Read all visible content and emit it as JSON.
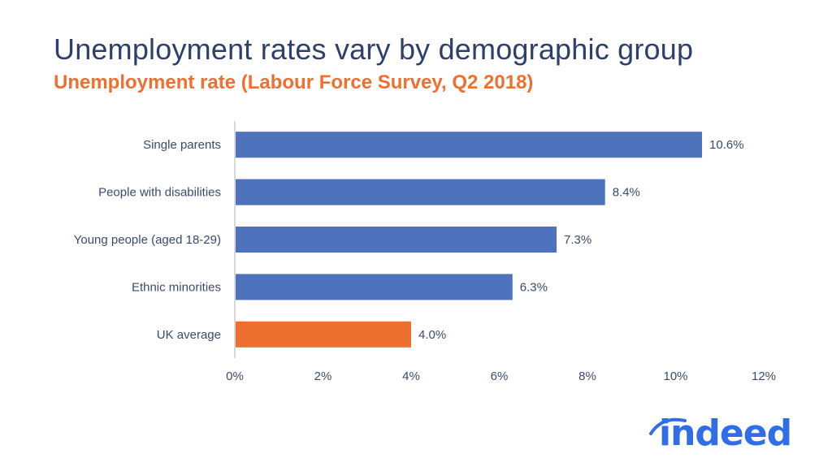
{
  "header": {
    "title": "Unemployment rates vary by demographic group",
    "subtitle": "Unemployment rate (Labour Force Survey, Q2 2018)"
  },
  "colors": {
    "default_bar": "#4f72bd",
    "highlight_bar": "#ed7030",
    "text": "#3b4a6b",
    "axis": "#d9d9d9",
    "logo": "#2f6ee6"
  },
  "logo": {
    "text": "indeed"
  },
  "chart_data": {
    "type": "bar",
    "orientation": "horizontal",
    "title": "Unemployment rates vary by demographic group",
    "subtitle": "Unemployment rate (Labour Force Survey, Q2 2018)",
    "xlabel": "",
    "ylabel": "",
    "categories": [
      "Single parents",
      "People with disabilities",
      "Young people (aged 18-29)",
      "Ethnic minorities",
      "UK average"
    ],
    "values": [
      10.6,
      8.4,
      7.3,
      6.3,
      4.0
    ],
    "value_labels": [
      "10.6%",
      "8.4%",
      "7.3%",
      "6.3%",
      "4.0%"
    ],
    "highlight": [
      false,
      false,
      false,
      false,
      true
    ],
    "xlim": [
      0,
      12
    ],
    "x_ticks": [
      0,
      2,
      4,
      6,
      8,
      10,
      12
    ],
    "x_tick_labels": [
      "0%",
      "2%",
      "4%",
      "6%",
      "8%",
      "10%",
      "12%"
    ],
    "grid": false,
    "legend": "none"
  }
}
